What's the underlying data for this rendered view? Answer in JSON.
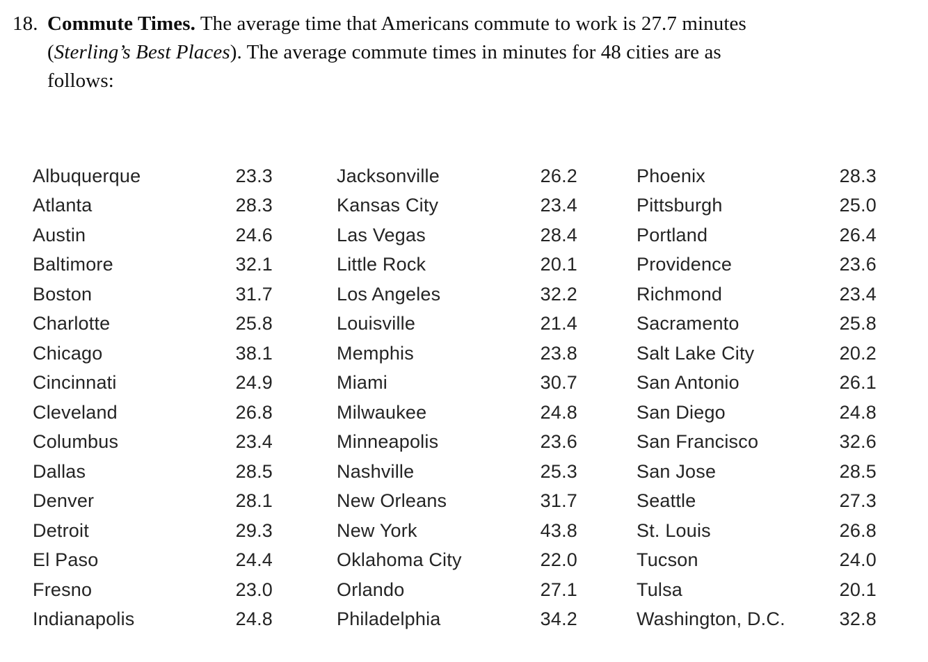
{
  "problem": {
    "number": "18.",
    "title": "Commute Times.",
    "line1_rest": "The average time that Americans commute to work is 27.7 minutes",
    "line2_open": "(",
    "line2_source": "Sterling’s Best Places",
    "line2_rest": "). The average commute times in minutes for 48 cities are as",
    "line3": "follows:"
  },
  "commute_table": {
    "unit": "minutes",
    "columns": [
      {
        "rows": [
          {
            "city": "Albuquerque",
            "time": "23.3"
          },
          {
            "city": "Atlanta",
            "time": "28.3"
          },
          {
            "city": "Austin",
            "time": "24.6"
          },
          {
            "city": "Baltimore",
            "time": "32.1"
          },
          {
            "city": "Boston",
            "time": "31.7"
          },
          {
            "city": "Charlotte",
            "time": "25.8"
          },
          {
            "city": "Chicago",
            "time": "38.1"
          },
          {
            "city": "Cincinnati",
            "time": "24.9"
          },
          {
            "city": "Cleveland",
            "time": "26.8"
          },
          {
            "city": "Columbus",
            "time": "23.4"
          },
          {
            "city": "Dallas",
            "time": "28.5"
          },
          {
            "city": "Denver",
            "time": "28.1"
          },
          {
            "city": "Detroit",
            "time": "29.3"
          },
          {
            "city": "El Paso",
            "time": "24.4"
          },
          {
            "city": "Fresno",
            "time": "23.0"
          },
          {
            "city": "Indianapolis",
            "time": "24.8"
          }
        ]
      },
      {
        "rows": [
          {
            "city": "Jacksonville",
            "time": "26.2"
          },
          {
            "city": "Kansas City",
            "time": "23.4"
          },
          {
            "city": "Las Vegas",
            "time": "28.4"
          },
          {
            "city": "Little Rock",
            "time": "20.1"
          },
          {
            "city": "Los Angeles",
            "time": "32.2"
          },
          {
            "city": "Louisville",
            "time": "21.4"
          },
          {
            "city": "Memphis",
            "time": "23.8"
          },
          {
            "city": "Miami",
            "time": "30.7"
          },
          {
            "city": "Milwaukee",
            "time": "24.8"
          },
          {
            "city": "Minneapolis",
            "time": "23.6"
          },
          {
            "city": "Nashville",
            "time": "25.3"
          },
          {
            "city": "New Orleans",
            "time": "31.7"
          },
          {
            "city": "New York",
            "time": "43.8"
          },
          {
            "city": "Oklahoma City",
            "time": "22.0"
          },
          {
            "city": "Orlando",
            "time": "27.1"
          },
          {
            "city": "Philadelphia",
            "time": "34.2"
          }
        ]
      },
      {
        "rows": [
          {
            "city": "Phoenix",
            "time": "28.3"
          },
          {
            "city": "Pittsburgh",
            "time": "25.0"
          },
          {
            "city": "Portland",
            "time": "26.4"
          },
          {
            "city": "Providence",
            "time": "23.6"
          },
          {
            "city": "Richmond",
            "time": "23.4"
          },
          {
            "city": "Sacramento",
            "time": "25.8"
          },
          {
            "city": "Salt Lake City",
            "time": "20.2"
          },
          {
            "city": "San Antonio",
            "time": "26.1"
          },
          {
            "city": "San Diego",
            "time": "24.8"
          },
          {
            "city": "San Francisco",
            "time": "32.6"
          },
          {
            "city": "San Jose",
            "time": "28.5"
          },
          {
            "city": "Seattle",
            "time": "27.3"
          },
          {
            "city": "St. Louis",
            "time": "26.8"
          },
          {
            "city": "Tucson",
            "time": "24.0"
          },
          {
            "city": "Tulsa",
            "time": "20.1"
          },
          {
            "city": "Washington, D.C.",
            "time": "32.8"
          }
        ]
      }
    ]
  }
}
